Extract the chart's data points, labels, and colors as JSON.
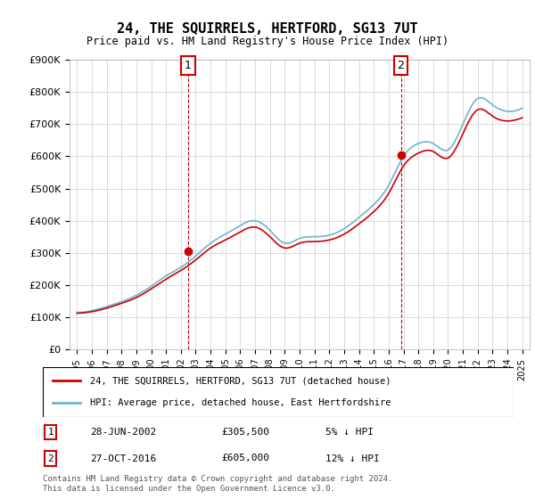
{
  "title": "24, THE SQUIRRELS, HERTFORD, SG13 7UT",
  "subtitle": "Price paid vs. HM Land Registry's House Price Index (HPI)",
  "legend_label_red": "24, THE SQUIRRELS, HERTFORD, SG13 7UT (detached house)",
  "legend_label_blue": "HPI: Average price, detached house, East Hertfordshire",
  "footnote": "Contains HM Land Registry data © Crown copyright and database right 2024.\nThis data is licensed under the Open Government Licence v3.0.",
  "transaction1_label": "1",
  "transaction1_date": "28-JUN-2002",
  "transaction1_price": "£305,500",
  "transaction1_hpi": "5% ↓ HPI",
  "transaction2_label": "2",
  "transaction2_date": "27-OCT-2016",
  "transaction2_price": "£605,000",
  "transaction2_hpi": "12% ↓ HPI",
  "sale1_year": 2002.49,
  "sale1_price": 305500,
  "sale2_year": 2016.82,
  "sale2_price": 605000,
  "hpi_color": "#6fb3d2",
  "price_color": "#cc0000",
  "marker_color": "#cc0000",
  "vline_color": "#cc0000",
  "background_color": "#ffffff",
  "grid_color": "#cccccc",
  "years": [
    1995,
    1996,
    1997,
    1998,
    1999,
    2000,
    2001,
    2002,
    2003,
    2004,
    2005,
    2006,
    2007,
    2008,
    2009,
    2010,
    2011,
    2012,
    2013,
    2014,
    2015,
    2016,
    2017,
    2018,
    2019,
    2020,
    2021,
    2022,
    2023,
    2024,
    2025
  ],
  "hpi_values": [
    115000,
    120000,
    133000,
    148000,
    168000,
    196000,
    228000,
    255000,
    290000,
    330000,
    358000,
    385000,
    400000,
    370000,
    330000,
    345000,
    350000,
    355000,
    375000,
    410000,
    450000,
    510000,
    600000,
    640000,
    640000,
    620000,
    700000,
    780000,
    760000,
    740000,
    750000
  ],
  "price_values": [
    112000,
    117000,
    128000,
    143000,
    161000,
    188000,
    218000,
    245000,
    278000,
    315000,
    340000,
    365000,
    380000,
    350000,
    315000,
    330000,
    335000,
    340000,
    358000,
    390000,
    428000,
    485000,
    570000,
    610000,
    615000,
    595000,
    670000,
    745000,
    725000,
    710000,
    720000
  ],
  "ylim": [
    0,
    900000
  ],
  "yticks": [
    0,
    100000,
    200000,
    300000,
    400000,
    500000,
    600000,
    700000,
    800000,
    900000
  ],
  "ytick_labels": [
    "£0",
    "£100K",
    "£200K",
    "£300K",
    "£400K",
    "£500K",
    "£600K",
    "£700K",
    "£800K",
    "£900K"
  ],
  "xtick_years": [
    1995,
    1996,
    1997,
    1998,
    1999,
    2000,
    2001,
    2002,
    2003,
    2004,
    2005,
    2006,
    2007,
    2008,
    2009,
    2010,
    2011,
    2012,
    2013,
    2014,
    2015,
    2016,
    2017,
    2018,
    2019,
    2020,
    2021,
    2022,
    2023,
    2024,
    2025
  ]
}
